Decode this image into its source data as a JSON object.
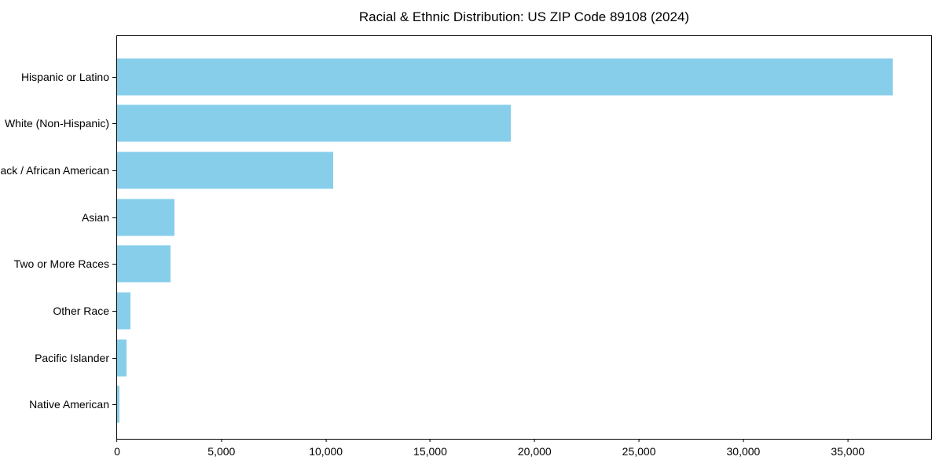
{
  "title": "Racial & Ethnic Distribution: US ZIP Code 89108 (2024)",
  "colors": {
    "bar": "#87CEEB",
    "axis": "#000000",
    "text": "#000000",
    "background": "#FFFFFF"
  },
  "chart_data": {
    "type": "bar",
    "orientation": "horizontal",
    "title": "Racial & Ethnic Distribution: US ZIP Code 89108 (2024)",
    "xlabel": "",
    "ylabel": "",
    "categories": [
      "Hispanic or Latino",
      "White (Non-Hispanic)",
      "Black / African American",
      "Asian",
      "Two or More Races",
      "Other Race",
      "Pacific Islander",
      "Native American"
    ],
    "values": [
      37150,
      18870,
      10340,
      2730,
      2550,
      640,
      440,
      110
    ],
    "xlim": [
      0,
      39000
    ],
    "xticks": [
      0,
      5000,
      10000,
      15000,
      20000,
      25000,
      30000,
      35000
    ],
    "xtick_labels": [
      "0",
      "5,000",
      "10,000",
      "15,000",
      "20,000",
      "25,000",
      "30,000",
      "35,000"
    ],
    "bar_color": "#87CEEB",
    "grid": false,
    "legend": null
  }
}
